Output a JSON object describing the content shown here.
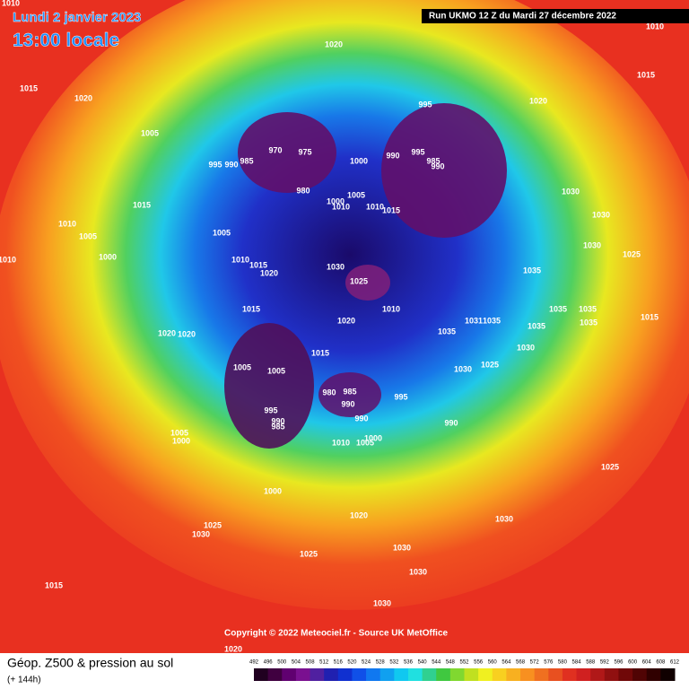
{
  "header": {
    "date": "Lundi 2 janvier 2023",
    "time": "13:00 locale",
    "run": "Run UKMO 12 Z du Mardi 27 décembre 2022"
  },
  "copyright": "Copyright © 2022 Meteociel.fr - Source UK MetOffice",
  "legend": {
    "title": "Géop. Z500 & pression au sol",
    "lead": "(+ 144h)",
    "scale": [
      "492",
      "496",
      "500",
      "504",
      "508",
      "512",
      "516",
      "520",
      "524",
      "528",
      "532",
      "536",
      "540",
      "544",
      "548",
      "552",
      "556",
      "560",
      "564",
      "568",
      "572",
      "576",
      "580",
      "584",
      "588",
      "592",
      "596",
      "600",
      "604",
      "608",
      "612"
    ]
  },
  "isobar_labels": [
    "1010",
    "1010",
    "1020",
    "1015",
    "1020",
    "1015",
    "1020",
    "995",
    "1005",
    "970",
    "975",
    "995",
    "990",
    "985",
    "1000",
    "990",
    "995",
    "990",
    "985",
    "980",
    "1005",
    "1000",
    "1010",
    "1010",
    "1015",
    "1030",
    "1015",
    "1010",
    "1005",
    "1005",
    "1030",
    "1030",
    "1000",
    "1010",
    "1010",
    "1015",
    "1020",
    "1030",
    "1025",
    "1035",
    "1025",
    "1035",
    "1035",
    "1015",
    "1010",
    "1020",
    "1031",
    "1035",
    "1015",
    "1035",
    "1035",
    "1020",
    "1020",
    "1035",
    "1015",
    "1030",
    "1005",
    "1005",
    "1025",
    "1030",
    "980",
    "985",
    "990",
    "995",
    "995",
    "990",
    "985",
    "990",
    "990",
    "1005",
    "1000",
    "1010",
    "1005",
    "1000",
    "1025",
    "1000",
    "1020",
    "1030",
    "1025",
    "1030",
    "1030",
    "1025",
    "1030",
    "1015",
    "1030",
    "1020"
  ]
}
